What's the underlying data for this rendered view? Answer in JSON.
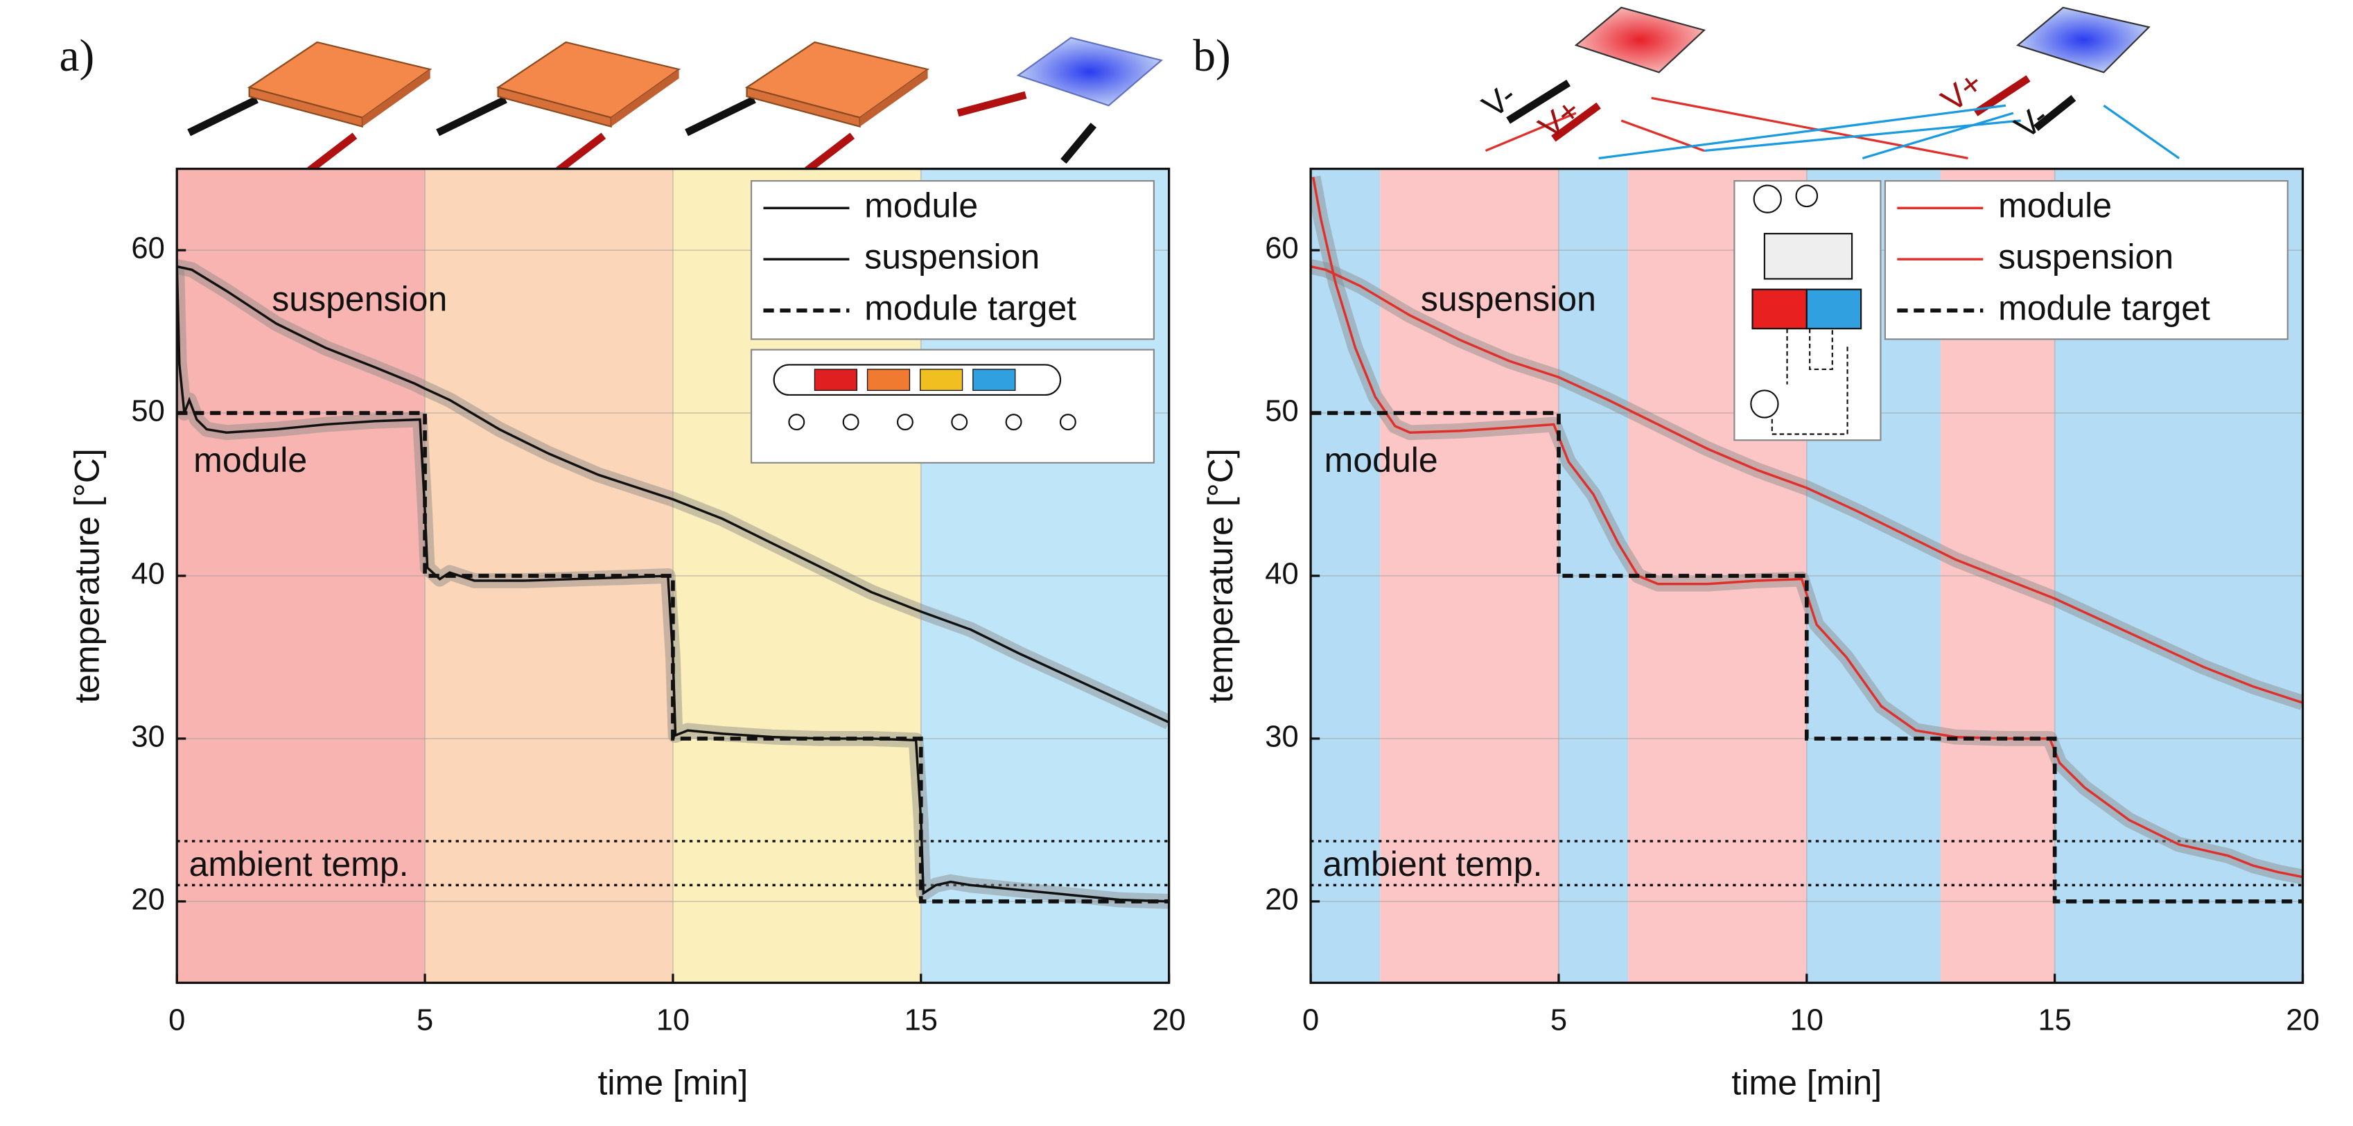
{
  "chart_data": [
    {
      "type": "line",
      "title": "a)",
      "xlabel": "time [min]",
      "ylabel": "temperature [°C]",
      "xlim": [
        0,
        20
      ],
      "ylim": [
        15,
        65
      ],
      "xticks": [
        0,
        5,
        10,
        15,
        20
      ],
      "yticks": [
        20,
        30,
        40,
        50,
        60
      ],
      "grid": true,
      "legend": "upper right",
      "regions": [
        {
          "start": 0,
          "end": 5,
          "color": "#f8b4b0"
        },
        {
          "start": 5,
          "end": 10,
          "color": "#fbd6b8"
        },
        {
          "start": 10,
          "end": 15,
          "color": "#fbefbb"
        },
        {
          "start": 15,
          "end": 20,
          "color": "#bfe5f8"
        }
      ],
      "ambient_lines": [
        23.7,
        21
      ],
      "ambient_label": "ambient temp.",
      "annotations": [
        "suspension",
        "module"
      ],
      "series": [
        {
          "name": "module",
          "color": "#111111",
          "style": "solid",
          "x": [
            0,
            0.05,
            0.15,
            0.25,
            0.4,
            0.6,
            1,
            2,
            3,
            4,
            4.9,
            5.0,
            5.05,
            5.3,
            5.5,
            6,
            7,
            8,
            9,
            9.9,
            10.0,
            10.05,
            10.3,
            11,
            12,
            13,
            14,
            14.9,
            15.0,
            15.05,
            15.3,
            15.6,
            16,
            17,
            18,
            19,
            20
          ],
          "values": [
            59,
            53,
            50,
            50.8,
            49.6,
            49,
            48.8,
            49,
            49.3,
            49.5,
            49.6,
            44,
            40.5,
            39.8,
            40.2,
            39.7,
            39.7,
            39.8,
            39.9,
            40,
            35,
            30.2,
            30.5,
            30.3,
            30.1,
            30,
            30,
            29.9,
            25,
            20.5,
            21,
            21.2,
            21,
            20.7,
            20.4,
            20.1,
            20
          ]
        },
        {
          "name": "suspension",
          "color": "#111111",
          "style": "solid",
          "x": [
            0,
            0.3,
            1,
            2,
            3,
            4,
            4.8,
            5,
            5.5,
            6.5,
            7.5,
            8.5,
            9.5,
            10,
            11,
            12,
            13,
            14,
            15,
            16,
            17,
            18,
            19,
            20
          ],
          "values": [
            59,
            58.8,
            57.5,
            55.5,
            54,
            52.8,
            51.8,
            51.5,
            50.8,
            49,
            47.5,
            46.2,
            45.2,
            44.7,
            43.5,
            42,
            40.5,
            39,
            37.8,
            36.7,
            35.2,
            33.8,
            32.4,
            31
          ]
        },
        {
          "name": "module target",
          "color": "#111111",
          "style": "dashed",
          "x": [
            0,
            5,
            5,
            10,
            10,
            15,
            15,
            20
          ],
          "values": [
            50,
            50,
            40,
            40,
            30,
            30,
            20,
            20
          ]
        }
      ]
    },
    {
      "type": "line",
      "title": "b)",
      "xlabel": "time [min]",
      "ylabel": "temperature [°C]",
      "xlim": [
        0,
        20
      ],
      "ylim": [
        15,
        65
      ],
      "xticks": [
        0,
        5,
        10,
        15,
        20
      ],
      "yticks": [
        20,
        30,
        40,
        50,
        60
      ],
      "grid": true,
      "legend": "upper right",
      "regions": [
        {
          "start": 0,
          "end": 1.4,
          "color": "#b4dcf5"
        },
        {
          "start": 1.4,
          "end": 5,
          "color": "#fcc6c6"
        },
        {
          "start": 5,
          "end": 6.4,
          "color": "#b4dcf5"
        },
        {
          "start": 6.4,
          "end": 10,
          "color": "#fcc6c6"
        },
        {
          "start": 10,
          "end": 12.7,
          "color": "#b4dcf5"
        },
        {
          "start": 12.7,
          "end": 15,
          "color": "#fcc6c6"
        },
        {
          "start": 15,
          "end": 20,
          "color": "#b4dcf5"
        }
      ],
      "ambient_lines": [
        23.7,
        21
      ],
      "ambient_label": "ambient temp.",
      "annotations": [
        "suspension",
        "module"
      ],
      "diagram_labels": [
        "V-",
        "V+",
        "V+",
        "V-"
      ],
      "series": [
        {
          "name": "module",
          "color": "#e0302c",
          "style": "solid",
          "x": [
            0.05,
            0.2,
            0.5,
            0.9,
            1.3,
            1.7,
            2,
            3,
            4,
            4.9,
            5.2,
            5.7,
            6.2,
            6.6,
            7,
            8,
            9,
            9.9,
            10.2,
            10.8,
            11.5,
            12.2,
            13,
            14,
            14.9,
            15.1,
            15.6,
            16.5,
            17.5,
            18.5,
            19,
            19.5,
            20
          ],
          "values": [
            64.5,
            62,
            58,
            54,
            51,
            49.2,
            48.8,
            48.9,
            49.1,
            49.3,
            47,
            45,
            42,
            40,
            39.5,
            39.5,
            39.7,
            39.8,
            37,
            35,
            32,
            30.5,
            30.1,
            30,
            30,
            28.5,
            27,
            25,
            23.5,
            22.8,
            22.2,
            21.8,
            21.5
          ]
        },
        {
          "name": "suspension",
          "color": "#e0302c",
          "style": "solid",
          "x": [
            0,
            0.3,
            1,
            2,
            3,
            4,
            5,
            6,
            7,
            8,
            9,
            10,
            11,
            12,
            13,
            14,
            15,
            16,
            17,
            18,
            19,
            20
          ],
          "values": [
            59,
            58.8,
            57.8,
            56,
            54.5,
            53.2,
            52.2,
            50.8,
            49.3,
            47.8,
            46.5,
            45.4,
            44,
            42.5,
            41,
            39.8,
            38.6,
            37.2,
            35.8,
            34.4,
            33.2,
            32.2
          ]
        },
        {
          "name": "module target",
          "color": "#111111",
          "style": "dashed",
          "x": [
            0,
            5,
            5,
            10,
            10,
            15,
            15,
            20
          ],
          "values": [
            50,
            50,
            40,
            40,
            30,
            30,
            20,
            20
          ]
        }
      ]
    }
  ]
}
